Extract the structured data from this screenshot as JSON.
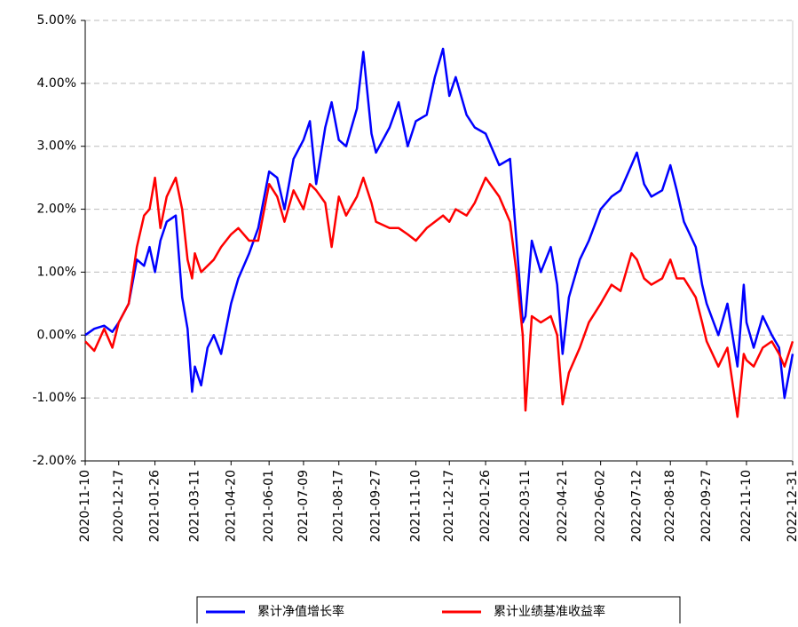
{
  "chart_data": {
    "type": "line",
    "x": [
      "2020-11-10",
      "2020-11-20",
      "2020-12-01",
      "2020-12-10",
      "2020-12-17",
      "2020-12-28",
      "2021-01-06",
      "2021-01-14",
      "2021-01-20",
      "2021-01-26",
      "2021-02-01",
      "2021-02-08",
      "2021-02-18",
      "2021-02-25",
      "2021-03-03",
      "2021-03-08",
      "2021-03-11",
      "2021-03-18",
      "2021-03-25",
      "2021-04-01",
      "2021-04-09",
      "2021-04-20",
      "2021-04-28",
      "2021-05-10",
      "2021-05-20",
      "2021-06-01",
      "2021-06-10",
      "2021-06-18",
      "2021-06-28",
      "2021-07-09",
      "2021-07-16",
      "2021-07-23",
      "2021-08-02",
      "2021-08-09",
      "2021-08-17",
      "2021-08-25",
      "2021-09-06",
      "2021-09-13",
      "2021-09-22",
      "2021-09-27",
      "2021-10-12",
      "2021-10-22",
      "2021-11-01",
      "2021-11-10",
      "2021-11-22",
      "2021-12-01",
      "2021-12-10",
      "2021-12-17",
      "2021-12-24",
      "2022-01-05",
      "2022-01-14",
      "2022-01-26",
      "2022-02-10",
      "2022-02-22",
      "2022-03-01",
      "2022-03-08",
      "2022-03-11",
      "2022-03-18",
      "2022-03-28",
      "2022-04-08",
      "2022-04-15",
      "2022-04-21",
      "2022-04-28",
      "2022-05-10",
      "2022-05-20",
      "2022-06-02",
      "2022-06-14",
      "2022-06-24",
      "2022-07-06",
      "2022-07-12",
      "2022-07-20",
      "2022-07-28",
      "2022-08-09",
      "2022-08-18",
      "2022-08-25",
      "2022-09-02",
      "2022-09-15",
      "2022-09-22",
      "2022-09-27",
      "2022-10-10",
      "2022-10-20",
      "2022-10-31",
      "2022-11-07",
      "2022-11-10",
      "2022-11-18",
      "2022-11-28",
      "2022-12-08",
      "2022-12-16",
      "2022-12-22",
      "2022-12-31"
    ],
    "series": [
      {
        "name": "累计净值增长率",
        "color": "#0000ff",
        "values": [
          0.0,
          0.1,
          0.15,
          0.05,
          0.2,
          0.5,
          1.2,
          1.1,
          1.4,
          1.0,
          1.5,
          1.8,
          1.9,
          0.6,
          0.1,
          -0.9,
          -0.5,
          -0.8,
          -0.2,
          0.0,
          -0.3,
          0.5,
          0.9,
          1.3,
          1.7,
          2.6,
          2.5,
          2.0,
          2.8,
          3.1,
          3.4,
          2.4,
          3.3,
          3.7,
          3.1,
          3.0,
          3.6,
          4.5,
          3.2,
          2.9,
          3.3,
          3.7,
          3.0,
          3.4,
          3.5,
          4.1,
          4.55,
          3.8,
          4.1,
          3.5,
          3.3,
          3.2,
          2.7,
          2.8,
          1.5,
          0.2,
          0.3,
          1.5,
          1.0,
          1.4,
          0.8,
          -0.3,
          0.6,
          1.2,
          1.5,
          2.0,
          2.2,
          2.3,
          2.7,
          2.9,
          2.4,
          2.2,
          2.3,
          2.7,
          2.3,
          1.8,
          1.4,
          0.8,
          0.5,
          0.0,
          0.5,
          -0.5,
          0.8,
          0.2,
          -0.2,
          0.3,
          0.0,
          -0.2,
          -1.0,
          -0.3
        ]
      },
      {
        "name": "累计业绩基准收益率",
        "color": "#ff0000",
        "values": [
          -0.1,
          -0.25,
          0.1,
          -0.2,
          0.2,
          0.5,
          1.4,
          1.9,
          2.0,
          2.5,
          1.7,
          2.2,
          2.5,
          2.0,
          1.2,
          0.9,
          1.3,
          1.0,
          1.1,
          1.2,
          1.4,
          1.6,
          1.7,
          1.5,
          1.5,
          2.4,
          2.2,
          1.8,
          2.3,
          2.0,
          2.4,
          2.3,
          2.1,
          1.4,
          2.2,
          1.9,
          2.2,
          2.5,
          2.1,
          1.8,
          1.7,
          1.7,
          1.6,
          1.5,
          1.7,
          1.8,
          1.9,
          1.8,
          2.0,
          1.9,
          2.1,
          2.5,
          2.2,
          1.8,
          1.0,
          0.0,
          -1.2,
          0.3,
          0.2,
          0.3,
          0.0,
          -1.1,
          -0.6,
          -0.2,
          0.2,
          0.5,
          0.8,
          0.7,
          1.3,
          1.2,
          0.9,
          0.8,
          0.9,
          1.2,
          0.9,
          0.9,
          0.6,
          0.2,
          -0.1,
          -0.5,
          -0.2,
          -1.3,
          -0.3,
          -0.4,
          -0.5,
          -0.2,
          -0.1,
          -0.3,
          -0.5,
          -0.1
        ]
      }
    ],
    "xlim": [
      "2020-11-10",
      "2022-12-31"
    ],
    "xticks": [
      "2020-11-10",
      "2020-12-17",
      "2021-01-26",
      "2021-03-11",
      "2021-04-20",
      "2021-06-01",
      "2021-07-09",
      "2021-08-17",
      "2021-09-27",
      "2021-11-10",
      "2021-12-17",
      "2022-01-26",
      "2022-03-11",
      "2022-04-21",
      "2022-06-02",
      "2022-07-12",
      "2022-08-18",
      "2022-09-27",
      "2022-11-10",
      "2022-12-31"
    ],
    "ylim": [
      -2,
      5
    ],
    "yticks": [
      {
        "value": -2,
        "label": "-2.00%"
      },
      {
        "value": -1,
        "label": "-1.00%"
      },
      {
        "value": 0,
        "label": "0.00%"
      },
      {
        "value": 1,
        "label": "1.00%"
      },
      {
        "value": 2,
        "label": "2.00%"
      },
      {
        "value": 3,
        "label": "3.00%"
      },
      {
        "value": 4,
        "label": "4.00%"
      },
      {
        "value": 5,
        "label": "5.00%"
      }
    ],
    "grid": true,
    "legend": "bottom"
  }
}
